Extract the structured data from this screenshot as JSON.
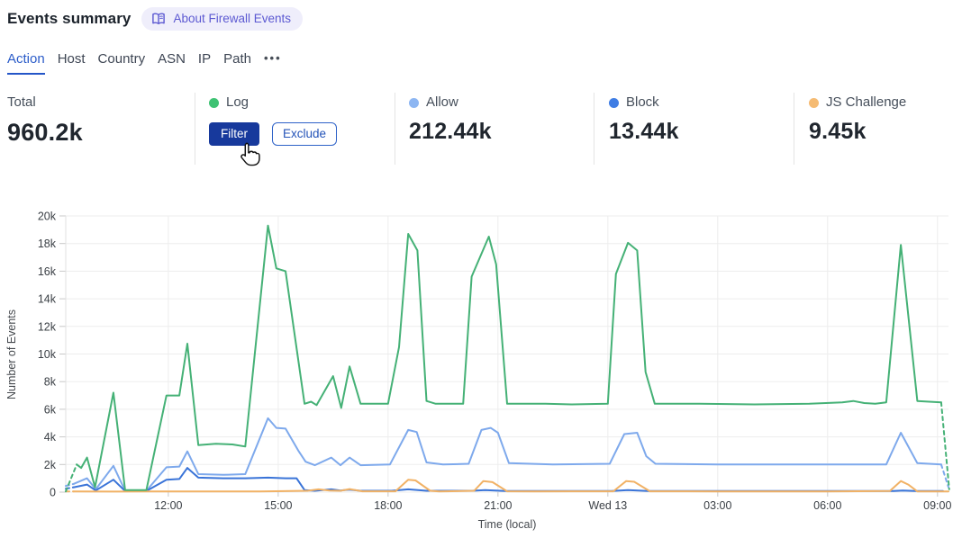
{
  "header": {
    "title": "Events summary",
    "badge_label": "About Firewall Events"
  },
  "tabs": {
    "items": [
      {
        "label": "Action",
        "active": true
      },
      {
        "label": "Host",
        "active": false
      },
      {
        "label": "Country",
        "active": false
      },
      {
        "label": "ASN",
        "active": false
      },
      {
        "label": "IP",
        "active": false
      },
      {
        "label": "Path",
        "active": false
      }
    ],
    "more_icon": "•••"
  },
  "stats": {
    "total_label": "Total",
    "total_value": "960.2k",
    "log": {
      "label": "Log",
      "dot_color": "#3ec273",
      "filter_label": "Filter",
      "exclude_label": "Exclude"
    },
    "allow": {
      "label": "Allow",
      "dot_color": "#8db6f2",
      "value": "212.44k"
    },
    "block": {
      "label": "Block",
      "dot_color": "#3f7de4",
      "value": "13.44k"
    },
    "js_challenge": {
      "label": "JS Challenge",
      "dot_color": "#f5bb73",
      "value": "9.45k"
    }
  },
  "colors": {
    "accent_blue": "#2b5cc9",
    "filter_button": "#17399c",
    "badge_purple": "#5c59d2",
    "gridline": "#ededed"
  },
  "chart_data": {
    "type": "line",
    "xlabel": "Time (local)",
    "ylabel": "Number of Events",
    "unit": "thousands of events (k)",
    "x_domain_hours": [
      9.2,
      33.3
    ],
    "ylim_k": [
      0,
      20
    ],
    "yticks": [
      {
        "label": "0",
        "v": 0
      },
      {
        "label": "2k",
        "v": 2
      },
      {
        "label": "4k",
        "v": 4
      },
      {
        "label": "6k",
        "v": 6
      },
      {
        "label": "8k",
        "v": 8
      },
      {
        "label": "10k",
        "v": 10
      },
      {
        "label": "12k",
        "v": 12
      },
      {
        "label": "14k",
        "v": 14
      },
      {
        "label": "16k",
        "v": 16
      },
      {
        "label": "18k",
        "v": 18
      },
      {
        "label": "20k",
        "v": 20
      }
    ],
    "xticks": [
      {
        "label": "12:00",
        "t": 12
      },
      {
        "label": "15:00",
        "t": 15
      },
      {
        "label": "18:00",
        "t": 18
      },
      {
        "label": "21:00",
        "t": 21
      },
      {
        "label": "Wed 13",
        "t": 24
      },
      {
        "label": "03:00",
        "t": 27
      },
      {
        "label": "06:00",
        "t": 30
      },
      {
        "label": "09:00",
        "t": 33
      }
    ],
    "grid": true,
    "legend_position": "in summary cards above chart",
    "series": [
      {
        "name": "Allow",
        "color": "#7ea9ec",
        "segments": [
          {
            "dashed": true,
            "points": [
              [
                9.2,
                0.45
              ],
              [
                9.42,
                0.6
              ]
            ]
          },
          {
            "dashed": false,
            "points": [
              [
                9.42,
                0.6
              ],
              [
                9.78,
                1.0
              ],
              [
                10.02,
                0.2
              ],
              [
                10.5,
                1.9
              ],
              [
                10.82,
                0.1
              ],
              [
                11.4,
                0.1
              ],
              [
                11.95,
                1.8
              ],
              [
                12.3,
                1.85
              ],
              [
                12.52,
                2.95
              ],
              [
                12.82,
                1.3
              ],
              [
                13.5,
                1.25
              ],
              [
                14.1,
                1.3
              ],
              [
                14.72,
                5.35
              ],
              [
                14.95,
                4.65
              ],
              [
                15.2,
                4.6
              ],
              [
                15.55,
                3.0
              ],
              [
                15.75,
                2.2
              ],
              [
                16.0,
                1.95
              ],
              [
                16.45,
                2.5
              ],
              [
                16.7,
                1.95
              ],
              [
                16.95,
                2.5
              ],
              [
                17.25,
                1.95
              ],
              [
                18.05,
                2.0
              ],
              [
                18.55,
                4.5
              ],
              [
                18.78,
                4.35
              ],
              [
                19.05,
                2.15
              ],
              [
                19.5,
                2.0
              ],
              [
                20.2,
                2.05
              ],
              [
                20.55,
                4.5
              ],
              [
                20.8,
                4.65
              ],
              [
                21.0,
                4.3
              ],
              [
                21.3,
                2.1
              ],
              [
                22.5,
                2.0
              ],
              [
                24.05,
                2.05
              ],
              [
                24.45,
                4.2
              ],
              [
                24.8,
                4.3
              ],
              [
                25.05,
                2.6
              ],
              [
                25.3,
                2.05
              ],
              [
                27.0,
                2.0
              ],
              [
                29.5,
                2.0
              ],
              [
                31.6,
                2.0
              ],
              [
                32.0,
                4.3
              ],
              [
                32.45,
                2.1
              ],
              [
                33.1,
                2.0
              ]
            ]
          },
          {
            "dashed": true,
            "points": [
              [
                33.1,
                2.0
              ],
              [
                33.3,
                0.35
              ]
            ]
          }
        ]
      },
      {
        "name": "Block",
        "color": "#3a74d8",
        "segments": [
          {
            "dashed": true,
            "points": [
              [
                9.2,
                0.25
              ],
              [
                9.42,
                0.35
              ]
            ]
          },
          {
            "dashed": false,
            "points": [
              [
                9.42,
                0.35
              ],
              [
                9.78,
                0.55
              ],
              [
                10.02,
                0.12
              ],
              [
                10.5,
                0.9
              ],
              [
                10.82,
                0.08
              ],
              [
                11.4,
                0.08
              ],
              [
                11.95,
                0.9
              ],
              [
                12.3,
                0.95
              ],
              [
                12.52,
                1.75
              ],
              [
                12.82,
                1.05
              ],
              [
                13.5,
                1.0
              ],
              [
                14.1,
                1.0
              ],
              [
                14.72,
                1.05
              ],
              [
                15.2,
                1.0
              ],
              [
                15.5,
                1.0
              ],
              [
                15.72,
                0.15
              ],
              [
                16.0,
                0.1
              ],
              [
                16.45,
                0.2
              ],
              [
                16.7,
                0.12
              ],
              [
                16.95,
                0.18
              ],
              [
                17.25,
                0.1
              ],
              [
                18.1,
                0.1
              ],
              [
                18.55,
                0.2
              ],
              [
                19.05,
                0.1
              ],
              [
                20.3,
                0.1
              ],
              [
                20.65,
                0.15
              ],
              [
                21.2,
                0.08
              ],
              [
                24.1,
                0.08
              ],
              [
                24.55,
                0.15
              ],
              [
                25.1,
                0.08
              ],
              [
                28.0,
                0.08
              ],
              [
                31.8,
                0.08
              ],
              [
                32.05,
                0.12
              ],
              [
                32.4,
                0.08
              ],
              [
                33.15,
                0.08
              ]
            ]
          }
        ]
      },
      {
        "name": "JS Challenge",
        "color": "#f1b266",
        "segments": [
          {
            "dashed": true,
            "points": [
              [
                9.2,
                0.05
              ],
              [
                9.42,
                0.05
              ]
            ]
          },
          {
            "dashed": false,
            "points": [
              [
                9.42,
                0.05
              ],
              [
                10.5,
                0.04
              ],
              [
                11.5,
                0.05
              ],
              [
                13.0,
                0.05
              ],
              [
                14.5,
                0.05
              ],
              [
                15.8,
                0.1
              ],
              [
                16.1,
                0.2
              ],
              [
                16.4,
                0.12
              ],
              [
                16.7,
                0.1
              ],
              [
                16.95,
                0.22
              ],
              [
                17.3,
                0.06
              ],
              [
                18.2,
                0.06
              ],
              [
                18.55,
                0.9
              ],
              [
                18.75,
                0.85
              ],
              [
                19.15,
                0.1
              ],
              [
                19.4,
                0.05
              ],
              [
                20.35,
                0.1
              ],
              [
                20.6,
                0.8
              ],
              [
                20.85,
                0.72
              ],
              [
                21.25,
                0.06
              ],
              [
                22.0,
                0.05
              ],
              [
                24.15,
                0.06
              ],
              [
                24.5,
                0.8
              ],
              [
                24.72,
                0.75
              ],
              [
                25.15,
                0.06
              ],
              [
                27.0,
                0.05
              ],
              [
                30.0,
                0.05
              ],
              [
                31.7,
                0.08
              ],
              [
                32.0,
                0.8
              ],
              [
                32.2,
                0.55
              ],
              [
                32.45,
                0.05
              ],
              [
                33.3,
                0.05
              ]
            ]
          }
        ]
      },
      {
        "name": "Log",
        "color": "#45b176",
        "segments": [
          {
            "dashed": true,
            "points": [
              [
                9.2,
                0.05
              ],
              [
                9.5,
                2.0
              ]
            ]
          },
          {
            "dashed": false,
            "points": [
              [
                9.5,
                2.0
              ],
              [
                9.62,
                1.75
              ],
              [
                9.78,
                2.5
              ],
              [
                10.0,
                0.35
              ],
              [
                10.5,
                7.2
              ],
              [
                10.82,
                0.15
              ],
              [
                11.4,
                0.15
              ],
              [
                11.95,
                7.0
              ],
              [
                12.3,
                7.0
              ],
              [
                12.52,
                10.75
              ],
              [
                12.82,
                3.4
              ],
              [
                13.3,
                3.5
              ],
              [
                13.75,
                3.45
              ],
              [
                14.1,
                3.3
              ],
              [
                14.72,
                19.3
              ],
              [
                14.95,
                16.2
              ],
              [
                15.2,
                16.0
              ],
              [
                15.72,
                6.4
              ],
              [
                15.9,
                6.55
              ],
              [
                16.05,
                6.3
              ],
              [
                16.5,
                8.4
              ],
              [
                16.72,
                6.1
              ],
              [
                16.95,
                9.1
              ],
              [
                17.25,
                6.4
              ],
              [
                18.0,
                6.4
              ],
              [
                18.3,
                10.5
              ],
              [
                18.55,
                18.7
              ],
              [
                18.8,
                17.5
              ],
              [
                19.05,
                6.6
              ],
              [
                19.3,
                6.4
              ],
              [
                20.05,
                6.4
              ],
              [
                20.28,
                15.6
              ],
              [
                20.75,
                18.5
              ],
              [
                20.95,
                16.5
              ],
              [
                21.25,
                6.4
              ],
              [
                22.3,
                6.4
              ],
              [
                23.0,
                6.35
              ],
              [
                24.0,
                6.4
              ],
              [
                24.22,
                15.8
              ],
              [
                24.55,
                18.05
              ],
              [
                24.8,
                17.5
              ],
              [
                25.03,
                8.7
              ],
              [
                25.28,
                6.4
              ],
              [
                26.5,
                6.4
              ],
              [
                28.0,
                6.35
              ],
              [
                29.5,
                6.4
              ],
              [
                30.4,
                6.5
              ],
              [
                30.7,
                6.6
              ],
              [
                31.0,
                6.45
              ],
              [
                31.3,
                6.4
              ],
              [
                31.6,
                6.5
              ],
              [
                32.0,
                17.9
              ],
              [
                32.45,
                6.6
              ],
              [
                33.1,
                6.5
              ]
            ]
          },
          {
            "dashed": true,
            "points": [
              [
                33.1,
                6.5
              ],
              [
                33.32,
                0.2
              ]
            ]
          }
        ]
      }
    ]
  }
}
